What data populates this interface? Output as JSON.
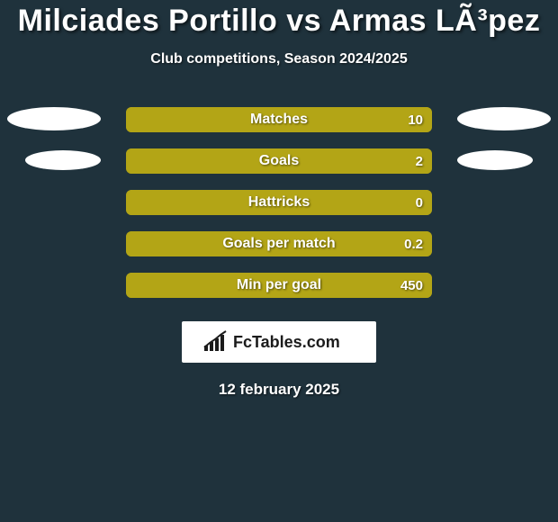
{
  "background_color": "#1f323c",
  "text_color": "#ffffff",
  "title": "Milciades Portillo vs Armas LÃ³pez",
  "title_fontsize": 34,
  "subtitle": "Club competitions, Season 2024/2025",
  "subtitle_fontsize": 16,
  "ellipse_color": "#ffffff",
  "stats": [
    {
      "label": "Matches",
      "left_value": "",
      "right_value": "10",
      "left_pct": 0,
      "right_pct": 100,
      "left_color": "#5c7a1f",
      "right_color": "#b3a516",
      "track_color": "#b3a516",
      "has_left_ellipse": true,
      "has_right_ellipse": true,
      "ellipse_size": "large"
    },
    {
      "label": "Goals",
      "left_value": "",
      "right_value": "2",
      "left_pct": 0,
      "right_pct": 100,
      "left_color": "#5c7a1f",
      "right_color": "#b3a516",
      "track_color": "#b3a516",
      "has_left_ellipse": true,
      "has_right_ellipse": true,
      "ellipse_size": "small"
    },
    {
      "label": "Hattricks",
      "left_value": "",
      "right_value": "0",
      "left_pct": 0,
      "right_pct": 100,
      "left_color": "#5c7a1f",
      "right_color": "#b3a516",
      "track_color": "#b3a516",
      "has_left_ellipse": false,
      "has_right_ellipse": false,
      "ellipse_size": "large"
    },
    {
      "label": "Goals per match",
      "left_value": "",
      "right_value": "0.2",
      "left_pct": 0,
      "right_pct": 100,
      "left_color": "#5c7a1f",
      "right_color": "#b3a516",
      "track_color": "#b3a516",
      "has_left_ellipse": false,
      "has_right_ellipse": false,
      "ellipse_size": "large"
    },
    {
      "label": "Min per goal",
      "left_value": "",
      "right_value": "450",
      "left_pct": 0,
      "right_pct": 100,
      "left_color": "#5c7a1f",
      "right_color": "#b3a516",
      "track_color": "#b3a516",
      "has_left_ellipse": false,
      "has_right_ellipse": false,
      "ellipse_size": "large"
    }
  ],
  "brand": {
    "text": "FcTables.com",
    "text_color": "#1b1b1b",
    "box_bg": "#ffffff",
    "icon_color": "#1b1b1b"
  },
  "date_text": "12 february 2025"
}
